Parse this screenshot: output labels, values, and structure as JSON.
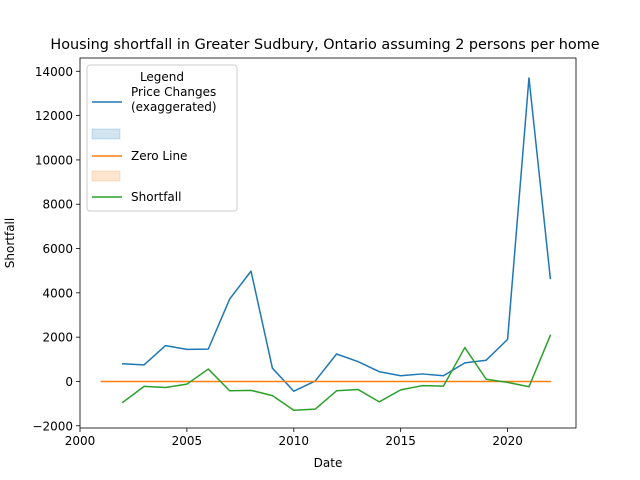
{
  "chart_data": {
    "type": "line",
    "title": "Housing shortfall in Greater Sudbury, Ontario assuming 2 persons per home",
    "xlabel": "Date",
    "ylabel": "Shortfall",
    "xlim": [
      2000,
      2023.2
    ],
    "ylim": [
      -2100,
      14600
    ],
    "xticks": [
      2000,
      2005,
      2010,
      2015,
      2020
    ],
    "yticks": [
      -2000,
      0,
      2000,
      4000,
      6000,
      8000,
      10000,
      12000,
      14000
    ],
    "grid": false,
    "legend": {
      "title": "Legend",
      "placement": "top-left",
      "entries": [
        {
          "label": "Price Changes\n(exaggerated)",
          "kind": "line",
          "color": "#1f77b4"
        },
        {
          "label": "",
          "kind": "patch",
          "color": "#1f77b4"
        },
        {
          "label": "Zero Line",
          "kind": "line",
          "color": "#ff7f0e"
        },
        {
          "label": "",
          "kind": "patch",
          "color": "#ff7f0e"
        },
        {
          "label": "Shortfall",
          "kind": "line",
          "color": "#2ca02c"
        }
      ]
    },
    "series": [
      {
        "name": "Price Changes (exaggerated)",
        "color": "#1f77b4",
        "x": [
          2002,
          2003,
          2004,
          2005,
          2006,
          2007,
          2008,
          2009,
          2010,
          2011,
          2012,
          2013,
          2014,
          2015,
          2016,
          2017,
          2018,
          2019,
          2020,
          2021,
          2022
        ],
        "y": [
          800,
          750,
          1620,
          1450,
          1460,
          3720,
          4980,
          600,
          -440,
          20,
          1240,
          900,
          440,
          260,
          340,
          260,
          840,
          960,
          1900,
          13700,
          4650
        ]
      },
      {
        "name": "Zero Line",
        "color": "#ff7f0e",
        "x": [
          2001,
          2022
        ],
        "y": [
          0,
          0
        ]
      },
      {
        "name": "Shortfall",
        "color": "#2ca02c",
        "x": [
          2002,
          2003,
          2004,
          2005,
          2006,
          2007,
          2008,
          2009,
          2010,
          2011,
          2012,
          2013,
          2014,
          2015,
          2016,
          2017,
          2018,
          2019,
          2020,
          2021,
          2022
        ],
        "y": [
          -940,
          -220,
          -270,
          -120,
          560,
          -420,
          -400,
          -640,
          -1300,
          -1250,
          -420,
          -360,
          -920,
          -380,
          -190,
          -210,
          1530,
          100,
          -40,
          -240,
          2080
        ]
      }
    ]
  }
}
